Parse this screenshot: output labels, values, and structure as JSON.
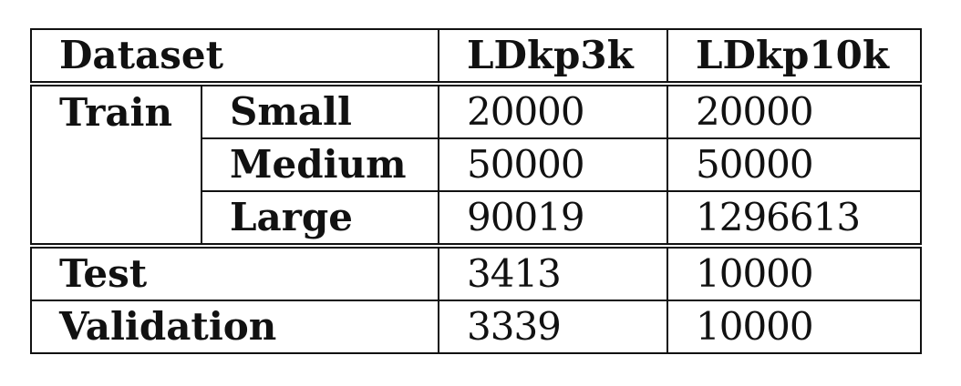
{
  "table": {
    "header": {
      "dataset": "Dataset",
      "col1": "LDkp3k",
      "col2": "LDkp10k"
    },
    "train": {
      "label": "Train",
      "rows": [
        {
          "size": "Small",
          "ldkp3k": "20000",
          "ldkp10k": "20000"
        },
        {
          "size": "Medium",
          "ldkp3k": "50000",
          "ldkp10k": "50000"
        },
        {
          "size": "Large",
          "ldkp3k": "90019",
          "ldkp10k": "1296613"
        }
      ]
    },
    "test": {
      "label": "Test",
      "ldkp3k": "3413",
      "ldkp10k": "10000"
    },
    "validation": {
      "label": "Validation",
      "ldkp3k": "3339",
      "ldkp10k": "10000"
    }
  }
}
